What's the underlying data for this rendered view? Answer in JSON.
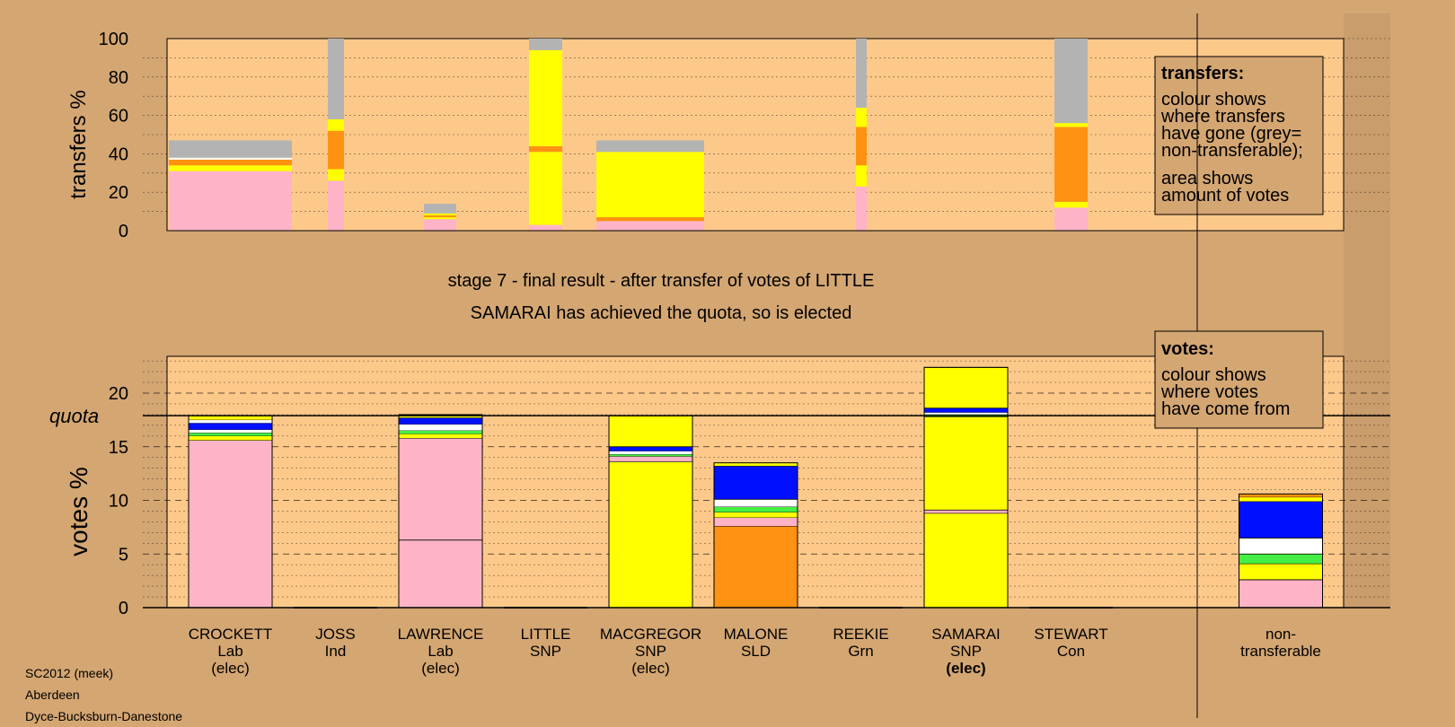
{
  "colors": {
    "background": "#d4a672",
    "plot_bg": "#fdc98a",
    "party": {
      "Lab": "#ffb3c6",
      "SNP": "#ffff00",
      "SLD": "#ff9210",
      "Con": "#0010ff",
      "Grn": "#44ee44",
      "Ind": "#ffffff",
      "NT": "#b3b3b3"
    }
  },
  "stage_text": {
    "line1": "stage 7 - final result - after transfer of votes of LITTLE",
    "line2": "SAMARAI has achieved the quota, so is elected"
  },
  "transfers_box": {
    "title": "transfers:",
    "lines": [
      "colour shows",
      "where transfers",
      "have gone (grey=",
      "non-transferable);",
      "area shows",
      "amount of votes"
    ]
  },
  "votes_box": {
    "title": "votes:",
    "lines": [
      "colour shows",
      "where votes",
      "have come from"
    ]
  },
  "footer": [
    "SC2012 (meek)",
    "Aberdeen",
    "Dyce-Bucksburn-Danestone"
  ],
  "chart_data": [
    {
      "type": "bar",
      "title": "",
      "ylabel": "transfers %",
      "ylim": [
        0,
        100
      ],
      "yticks": [
        0,
        20,
        40,
        60,
        80,
        100
      ],
      "grid": true,
      "note": "stacked; bar width proportional to transferring votes",
      "bars": [
        {
          "candidate": "CROCKETT",
          "segments": [
            {
              "party": "Lab",
              "value": 31
            },
            {
              "party": "SNP",
              "value": 3
            },
            {
              "party": "SLD",
              "value": 3
            },
            {
              "party": "Ind",
              "value": 1
            },
            {
              "party": "NT",
              "value": 9
            }
          ]
        },
        {
          "candidate": "JOSS",
          "segments": [
            {
              "party": "Lab",
              "value": 26
            },
            {
              "party": "SNP",
              "value": 6
            },
            {
              "party": "SLD",
              "value": 20
            },
            {
              "party": "SNP",
              "value": 6
            },
            {
              "party": "NT",
              "value": 42
            }
          ]
        },
        {
          "candidate": "LAWRENCE",
          "segments": [
            {
              "party": "Lab",
              "value": 6
            },
            {
              "party": "SNP",
              "value": 1
            },
            {
              "party": "SLD",
              "value": 1
            },
            {
              "party": "SNP",
              "value": 1
            },
            {
              "party": "NT",
              "value": 5
            }
          ]
        },
        {
          "candidate": "LITTLE",
          "segments": [
            {
              "party": "Lab",
              "value": 3
            },
            {
              "party": "SNP",
              "value": 38
            },
            {
              "party": "SLD",
              "value": 3
            },
            {
              "party": "SNP",
              "value": 50
            },
            {
              "party": "NT",
              "value": 6
            }
          ]
        },
        {
          "candidate": "MACGREGOR",
          "segments": [
            {
              "party": "Lab",
              "value": 5
            },
            {
              "party": "SLD",
              "value": 2
            },
            {
              "party": "SNP",
              "value": 34
            },
            {
              "party": "NT",
              "value": 6
            }
          ]
        },
        {
          "candidate": "REEKIE",
          "segments": [
            {
              "party": "Lab",
              "value": 23
            },
            {
              "party": "SNP",
              "value": 11
            },
            {
              "party": "SLD",
              "value": 20
            },
            {
              "party": "SNP",
              "value": 10
            },
            {
              "party": "NT",
              "value": 36
            }
          ]
        },
        {
          "candidate": "STEWART",
          "segments": [
            {
              "party": "Lab",
              "value": 12
            },
            {
              "party": "SNP",
              "value": 3
            },
            {
              "party": "SLD",
              "value": 39
            },
            {
              "party": "SNP",
              "value": 2
            },
            {
              "party": "NT",
              "value": 44
            }
          ]
        }
      ]
    },
    {
      "type": "bar",
      "title": "",
      "ylabel": "votes %",
      "ylim": [
        0,
        23.5
      ],
      "yticks": [
        0,
        5,
        10,
        15,
        20
      ],
      "quota": 17.9,
      "quota_label": "quota",
      "grid": true,
      "categories": [
        {
          "name": "CROCKETT",
          "party": "Lab",
          "status": "(elec)"
        },
        {
          "name": "JOSS",
          "party": "Ind",
          "status": ""
        },
        {
          "name": "LAWRENCE",
          "party": "Lab",
          "status": "(elec)"
        },
        {
          "name": "LITTLE",
          "party": "SNP",
          "status": ""
        },
        {
          "name": "MACGREGOR",
          "party": "SNP",
          "status": "(elec)"
        },
        {
          "name": "MALONE",
          "party": "SLD",
          "status": ""
        },
        {
          "name": "REEKIE",
          "party": "Grn",
          "status": ""
        },
        {
          "name": "SAMARAI",
          "party": "SNP",
          "status": "(elec)"
        },
        {
          "name": "STEWART",
          "party": "Con",
          "status": ""
        },
        {
          "name": "non-",
          "party": "transferable",
          "status": ""
        }
      ],
      "stacks": [
        [
          {
            "party": "Lab",
            "value": 15.6
          },
          {
            "party": "SNP",
            "value": 0.4
          },
          {
            "party": "Grn",
            "value": 0.3
          },
          {
            "party": "Ind",
            "value": 0.3
          },
          {
            "party": "Con",
            "value": 0.6
          },
          {
            "party": "Ind",
            "value": 0.3
          },
          {
            "party": "SNP",
            "value": 0.4
          }
        ],
        [],
        [
          {
            "party": "Lab",
            "value": 6.3
          },
          {
            "party": "Lab",
            "value": 9.5
          },
          {
            "party": "SNP",
            "value": 0.4
          },
          {
            "party": "Grn",
            "value": 0.3
          },
          {
            "party": "Ind",
            "value": 0.6
          },
          {
            "party": "Con",
            "value": 0.6
          },
          {
            "party": "SNP",
            "value": 0.3
          }
        ],
        [],
        [
          {
            "party": "SNP",
            "value": 13.6
          },
          {
            "party": "Lab",
            "value": 0.5
          },
          {
            "party": "Grn",
            "value": 0.2
          },
          {
            "party": "Ind",
            "value": 0.3
          },
          {
            "party": "Con",
            "value": 0.4
          },
          {
            "party": "SNP",
            "value": 2.9
          }
        ],
        [
          {
            "party": "SLD",
            "value": 7.6
          },
          {
            "party": "Lab",
            "value": 0.8
          },
          {
            "party": "SNP",
            "value": 0.5
          },
          {
            "party": "Grn",
            "value": 0.5
          },
          {
            "party": "Ind",
            "value": 0.7
          },
          {
            "party": "Con",
            "value": 3.1
          },
          {
            "party": "SNP",
            "value": 0.3
          }
        ],
        [],
        [
          {
            "party": "SNP",
            "value": 8.8
          },
          {
            "party": "Lab",
            "value": 0.3
          },
          {
            "party": "SNP",
            "value": 8.7
          },
          {
            "party": "Grn",
            "value": 0.2
          },
          {
            "party": "Ind",
            "value": 0.2
          },
          {
            "party": "Con",
            "value": 0.4
          },
          {
            "party": "SNP",
            "value": 3.8
          }
        ],
        [],
        [
          {
            "party": "Lab",
            "value": 2.6
          },
          {
            "party": "SNP",
            "value": 1.5
          },
          {
            "party": "Grn",
            "value": 0.9
          },
          {
            "party": "Ind",
            "value": 1.5
          },
          {
            "party": "Con",
            "value": 3.4
          },
          {
            "party": "SNP",
            "value": 0.4
          },
          {
            "party": "SLD",
            "value": 0.3
          }
        ]
      ]
    }
  ]
}
